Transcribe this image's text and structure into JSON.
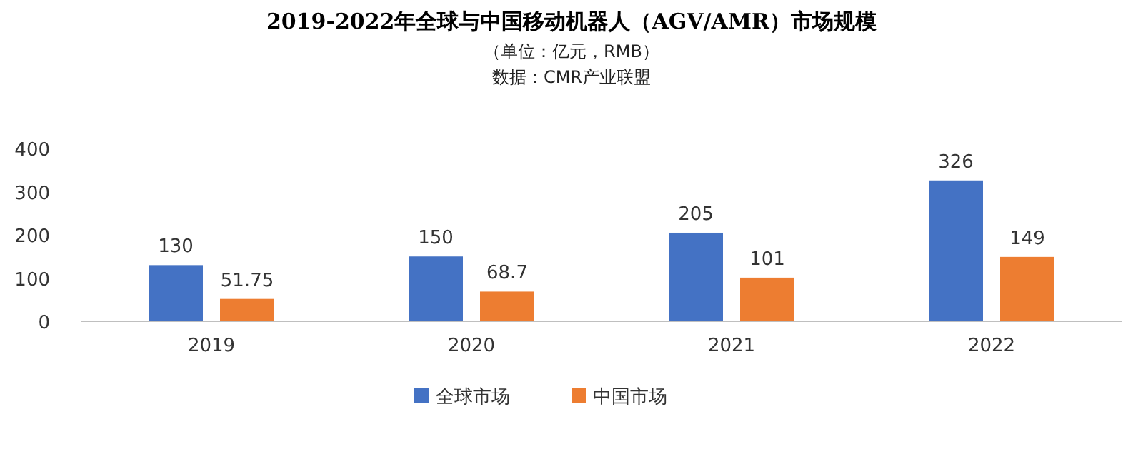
{
  "chart_data": {
    "type": "bar",
    "title": "2019-2022年全球与中国移动机器人（AGV/AMR）市场规模",
    "subtitle": "（单位：亿元，RMB）",
    "annotations": [
      "数据：CMR产业联盟"
    ],
    "categories": [
      "2019",
      "2020",
      "2021",
      "2022"
    ],
    "series": [
      {
        "name": "全球市场",
        "color": "#4472c4",
        "values": [
          130,
          150,
          205,
          326
        ]
      },
      {
        "name": "中国市场",
        "color": "#ed7d31",
        "values": [
          51.75,
          68.7,
          101,
          149
        ]
      }
    ],
    "ylim": [
      0,
      400
    ],
    "yticks": [
      0,
      100,
      200,
      300,
      400
    ],
    "data_labels": true,
    "legend": "bottom",
    "grid": false
  }
}
